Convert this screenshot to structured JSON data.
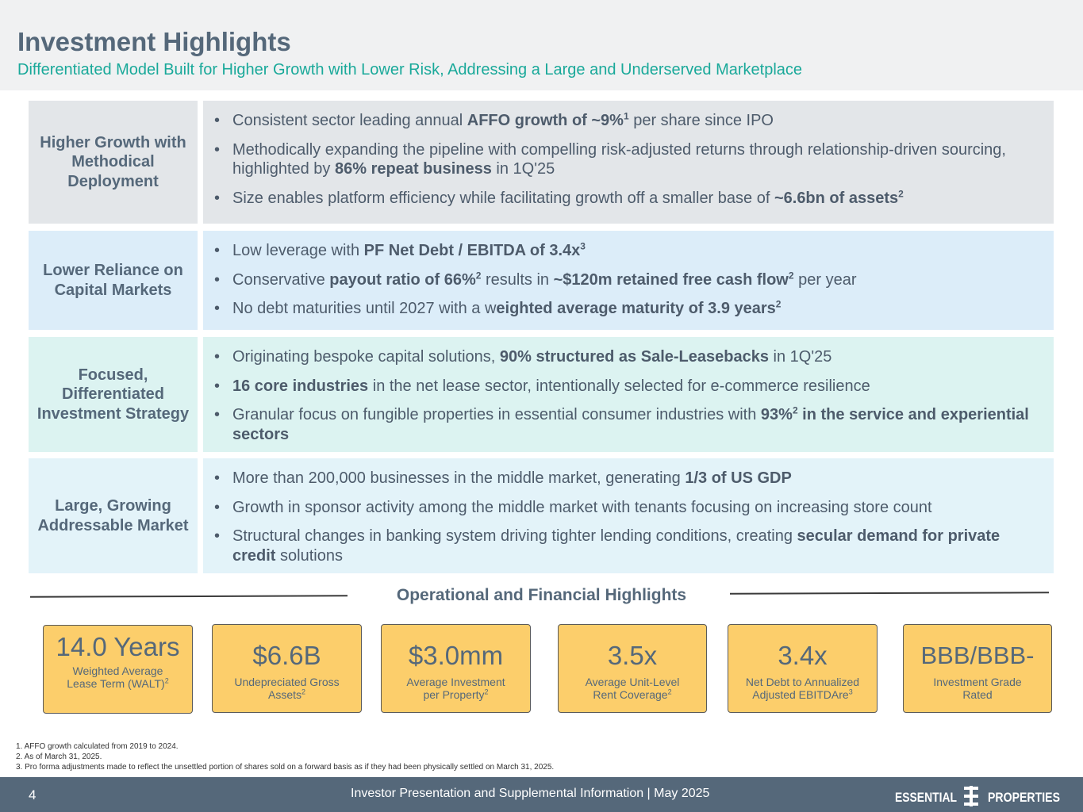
{
  "header": {
    "title": "Investment Highlights",
    "subtitle": "Differentiated Model Built for Higher Growth with Lower Risk, Addressing a Large and Underserved Marketplace"
  },
  "rows": [
    {
      "label": "Higher Growth with Methodical Deployment",
      "bullets": [
        [
          "Consistent sector leading annual ",
          {
            "b": "AFFO growth of ~9%"
          },
          {
            "sup": "1"
          },
          " per share since IPO"
        ],
        [
          "Methodically expanding the pipeline with compelling risk-adjusted returns through relationship-driven sourcing, highlighted by ",
          {
            "b": "86% repeat business"
          },
          " in 1Q'25"
        ],
        [
          "Size enables platform efficiency while facilitating growth off a smaller base of ",
          {
            "b": "~6.6bn of assets"
          },
          {
            "sup": "2"
          }
        ]
      ]
    },
    {
      "label": "Lower Reliance on Capital Markets",
      "bullets": [
        [
          "Low leverage with ",
          {
            "b": "PF Net Debt / EBITDA of 3.4x"
          },
          {
            "sup": "3"
          }
        ],
        [
          "Conservative ",
          {
            "b": "payout ratio of 66%"
          },
          {
            "sup": "2"
          },
          " results in ",
          {
            "b": "~$120m retained free cash flow"
          },
          {
            "sup": "2"
          },
          " per year"
        ],
        [
          "No debt maturities until 2027 with a w",
          {
            "b": "eighted average maturity of 3.9 years"
          },
          {
            "sup": "2"
          }
        ]
      ]
    },
    {
      "label": "Focused, Differentiated Investment Strategy",
      "bullets": [
        [
          "Originating bespoke capital solutions, ",
          {
            "b": "90% structured as Sale-Leasebacks"
          },
          " in 1Q'25"
        ],
        [
          {
            "b": "16 core industries"
          },
          " in the net lease sector, intentionally selected for e-commerce resilience"
        ],
        [
          "Granular focus on fungible properties in essential consumer industries with ",
          {
            "b": "93%"
          },
          {
            "sup": "2"
          },
          {
            "b": " in the service and experiential sectors"
          }
        ]
      ]
    },
    {
      "label": "Large, Growing Addressable Market",
      "bullets": [
        [
          "More than 200,000 businesses in the middle market, generating ",
          {
            "b": "1/3 of US GDP"
          }
        ],
        [
          "Growth in sponsor activity among the middle market with tenants focusing on increasing store count"
        ],
        [
          "Structural changes in banking system driving tighter lending conditions, creating ",
          {
            "b": "secular demand for private credit"
          },
          " solutions"
        ]
      ]
    }
  ],
  "highlights": {
    "title": "Operational and Financial Highlights",
    "tiles": [
      {
        "value": "14.0 Years",
        "label": "Weighted Average Lease Term (WALT)",
        "sup": "2"
      },
      {
        "value": "$6.6B",
        "label": "Undepreciated Gross Assets",
        "sup": "2"
      },
      {
        "value": "$3.0mm",
        "label": "Average Investment per Property",
        "sup": "2"
      },
      {
        "value": "3.5x",
        "label": "Average Unit-Level Rent Coverage",
        "sup": "2"
      },
      {
        "value": "3.4x",
        "label": "Net Debt to Annualized Adjusted EBITDAre",
        "sup": "3"
      },
      {
        "value": "BBB/BBB-",
        "label": "Investment Grade Rated",
        "sup": ""
      }
    ]
  },
  "footnotes": [
    "1.  AFFO growth calculated from 2019 to 2024.",
    "2.  As of March 31, 2025.",
    "3.  Pro forma adjustments made to reflect the unsettled portion of shares sold on a forward basis as if they had been physically settled on March 31, 2025."
  ],
  "footer": {
    "page": "4",
    "text": "Investor Presentation and Supplemental Information | May 2025",
    "logo_left": "ESSENTIAL",
    "logo_right": "PROPERTIES"
  }
}
